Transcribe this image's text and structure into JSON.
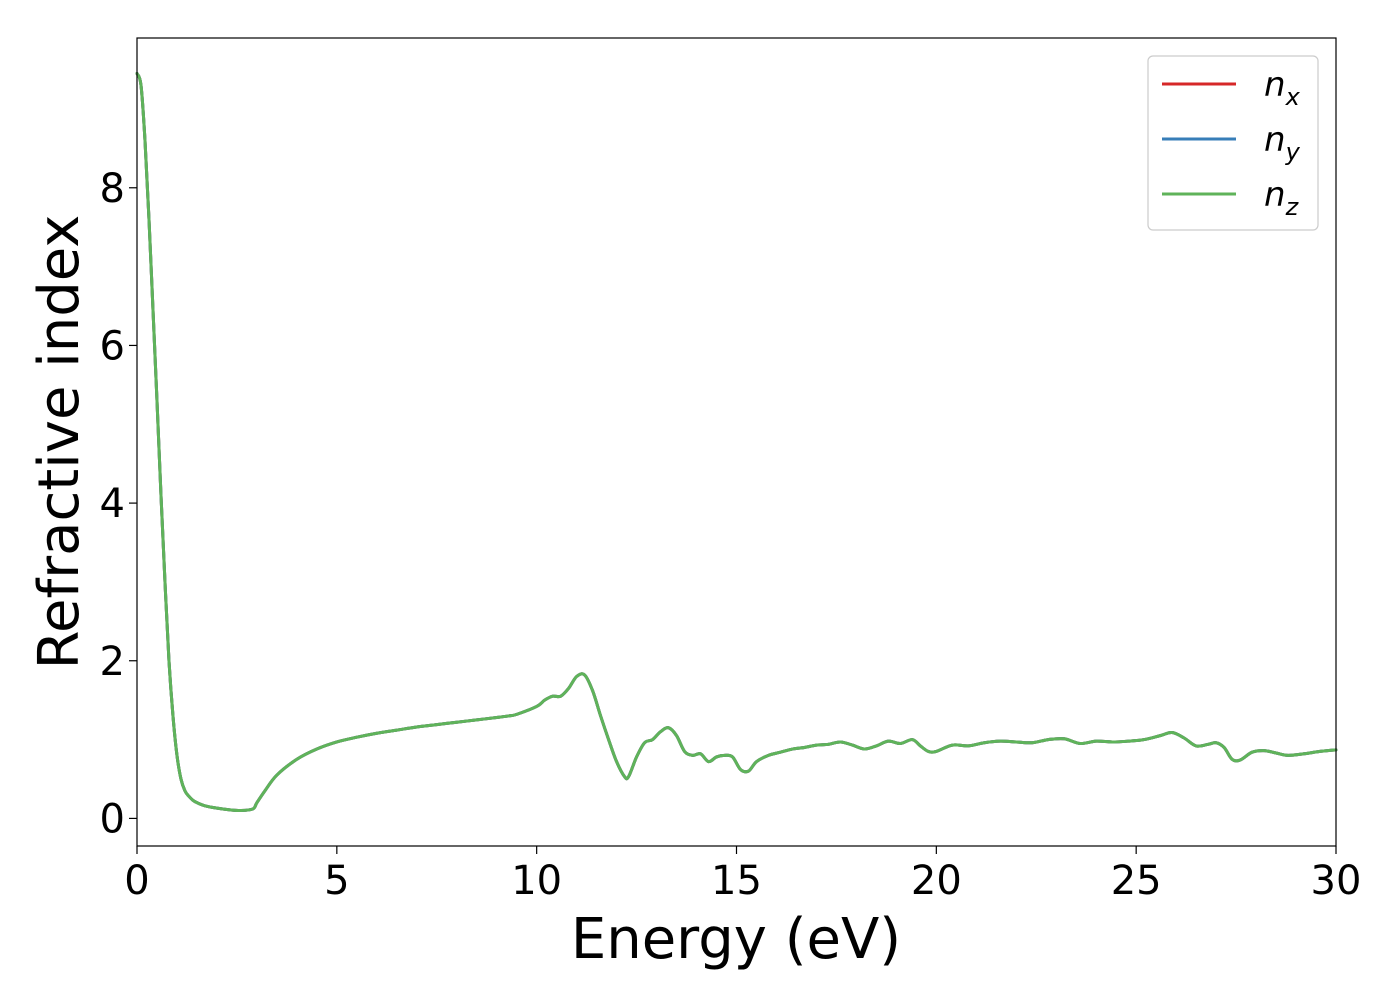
{
  "chart_data": {
    "type": "line",
    "title": "",
    "xlabel": "Energy (eV)",
    "ylabel": "Refractive index",
    "xlim": [
      0,
      30
    ],
    "ylim": [
      -0.35,
      9.9
    ],
    "xticks": [
      0,
      5,
      10,
      15,
      20,
      25,
      30
    ],
    "yticks": [
      0,
      2,
      4,
      6,
      8
    ],
    "grid": false,
    "legend_position": "top-right",
    "x": [
      0.0,
      0.1,
      0.2,
      0.3,
      0.4,
      0.5,
      0.6,
      0.7,
      0.8,
      0.9,
      1.0,
      1.1,
      1.2,
      1.3,
      1.4,
      1.5,
      1.7,
      2.0,
      2.3,
      2.6,
      2.9,
      3.0,
      3.2,
      3.5,
      4.0,
      4.5,
      5.0,
      5.5,
      6.0,
      6.5,
      7.0,
      7.5,
      8.0,
      8.5,
      9.0,
      9.3,
      9.5,
      10.0,
      10.2,
      10.4,
      10.6,
      10.8,
      11.0,
      11.2,
      11.4,
      11.6,
      11.8,
      12.0,
      12.2,
      12.3,
      12.5,
      12.7,
      12.9,
      13.1,
      13.3,
      13.5,
      13.7,
      13.9,
      14.1,
      14.3,
      14.5,
      14.7,
      14.9,
      15.1,
      15.3,
      15.5,
      15.8,
      16.1,
      16.4,
      16.7,
      17.0,
      17.3,
      17.6,
      17.9,
      18.2,
      18.5,
      18.8,
      19.1,
      19.4,
      19.6,
      19.8,
      20.0,
      20.4,
      20.8,
      21.2,
      21.6,
      22.0,
      22.4,
      22.8,
      23.2,
      23.6,
      24.0,
      24.4,
      24.8,
      25.2,
      25.6,
      25.9,
      26.2,
      26.5,
      26.8,
      27.0,
      27.2,
      27.4,
      27.6,
      27.9,
      28.2,
      28.5,
      28.8,
      29.2,
      29.6,
      30.0
    ],
    "series": [
      {
        "name": "n_x",
        "label_base": "n",
        "label_sub": "x",
        "color": "#d62728",
        "values": [
          9.45,
          9.3,
          8.6,
          7.6,
          6.45,
          5.3,
          4.1,
          3.0,
          2.0,
          1.3,
          0.8,
          0.5,
          0.35,
          0.28,
          0.23,
          0.2,
          0.16,
          0.13,
          0.11,
          0.1,
          0.12,
          0.2,
          0.35,
          0.55,
          0.75,
          0.88,
          0.97,
          1.03,
          1.08,
          1.12,
          1.16,
          1.19,
          1.22,
          1.25,
          1.28,
          1.3,
          1.32,
          1.42,
          1.5,
          1.55,
          1.55,
          1.65,
          1.8,
          1.82,
          1.62,
          1.3,
          1.0,
          0.72,
          0.53,
          0.53,
          0.78,
          0.96,
          1.0,
          1.1,
          1.15,
          1.05,
          0.85,
          0.8,
          0.82,
          0.72,
          0.78,
          0.8,
          0.78,
          0.62,
          0.6,
          0.72,
          0.8,
          0.84,
          0.88,
          0.9,
          0.93,
          0.94,
          0.97,
          0.93,
          0.88,
          0.92,
          0.98,
          0.95,
          1.0,
          0.92,
          0.85,
          0.85,
          0.93,
          0.92,
          0.96,
          0.98,
          0.97,
          0.96,
          1.0,
          1.01,
          0.95,
          0.98,
          0.97,
          0.98,
          1.0,
          1.05,
          1.09,
          1.02,
          0.92,
          0.94,
          0.96,
          0.9,
          0.75,
          0.74,
          0.84,
          0.86,
          0.83,
          0.8,
          0.82,
          0.85,
          0.87
        ]
      },
      {
        "name": "n_y",
        "label_base": "n",
        "label_sub": "y",
        "color": "#377eb8",
        "values": [
          9.45,
          9.3,
          8.6,
          7.6,
          6.45,
          5.3,
          4.1,
          3.0,
          2.0,
          1.3,
          0.8,
          0.5,
          0.35,
          0.28,
          0.23,
          0.2,
          0.16,
          0.13,
          0.11,
          0.1,
          0.12,
          0.2,
          0.35,
          0.55,
          0.75,
          0.88,
          0.97,
          1.03,
          1.08,
          1.12,
          1.16,
          1.19,
          1.22,
          1.25,
          1.28,
          1.3,
          1.32,
          1.42,
          1.5,
          1.55,
          1.55,
          1.65,
          1.8,
          1.82,
          1.62,
          1.3,
          1.0,
          0.72,
          0.53,
          0.53,
          0.78,
          0.96,
          1.0,
          1.1,
          1.15,
          1.05,
          0.85,
          0.8,
          0.82,
          0.72,
          0.78,
          0.8,
          0.78,
          0.62,
          0.6,
          0.72,
          0.8,
          0.84,
          0.88,
          0.9,
          0.93,
          0.94,
          0.97,
          0.93,
          0.88,
          0.92,
          0.98,
          0.95,
          1.0,
          0.92,
          0.85,
          0.85,
          0.93,
          0.92,
          0.96,
          0.98,
          0.97,
          0.96,
          1.0,
          1.01,
          0.95,
          0.98,
          0.97,
          0.98,
          1.0,
          1.05,
          1.09,
          1.02,
          0.92,
          0.94,
          0.96,
          0.9,
          0.75,
          0.74,
          0.84,
          0.86,
          0.83,
          0.8,
          0.82,
          0.85,
          0.87
        ]
      },
      {
        "name": "n_z",
        "label_base": "n",
        "label_sub": "z",
        "color": "#5fb35a",
        "values": [
          9.45,
          9.3,
          8.6,
          7.6,
          6.45,
          5.3,
          4.1,
          3.0,
          2.0,
          1.3,
          0.8,
          0.5,
          0.35,
          0.28,
          0.23,
          0.2,
          0.16,
          0.13,
          0.11,
          0.1,
          0.12,
          0.2,
          0.35,
          0.55,
          0.75,
          0.88,
          0.97,
          1.03,
          1.08,
          1.12,
          1.16,
          1.19,
          1.22,
          1.25,
          1.28,
          1.3,
          1.32,
          1.42,
          1.5,
          1.55,
          1.55,
          1.65,
          1.8,
          1.82,
          1.62,
          1.3,
          1.0,
          0.72,
          0.53,
          0.53,
          0.78,
          0.96,
          1.0,
          1.1,
          1.15,
          1.05,
          0.85,
          0.8,
          0.82,
          0.72,
          0.78,
          0.8,
          0.78,
          0.62,
          0.6,
          0.72,
          0.8,
          0.84,
          0.88,
          0.9,
          0.93,
          0.94,
          0.97,
          0.93,
          0.88,
          0.92,
          0.98,
          0.95,
          1.0,
          0.92,
          0.85,
          0.85,
          0.93,
          0.92,
          0.96,
          0.98,
          0.97,
          0.96,
          1.0,
          1.01,
          0.95,
          0.98,
          0.97,
          0.98,
          1.0,
          1.05,
          1.09,
          1.02,
          0.92,
          0.94,
          0.96,
          0.9,
          0.75,
          0.74,
          0.84,
          0.86,
          0.83,
          0.8,
          0.82,
          0.85,
          0.87
        ]
      }
    ]
  }
}
